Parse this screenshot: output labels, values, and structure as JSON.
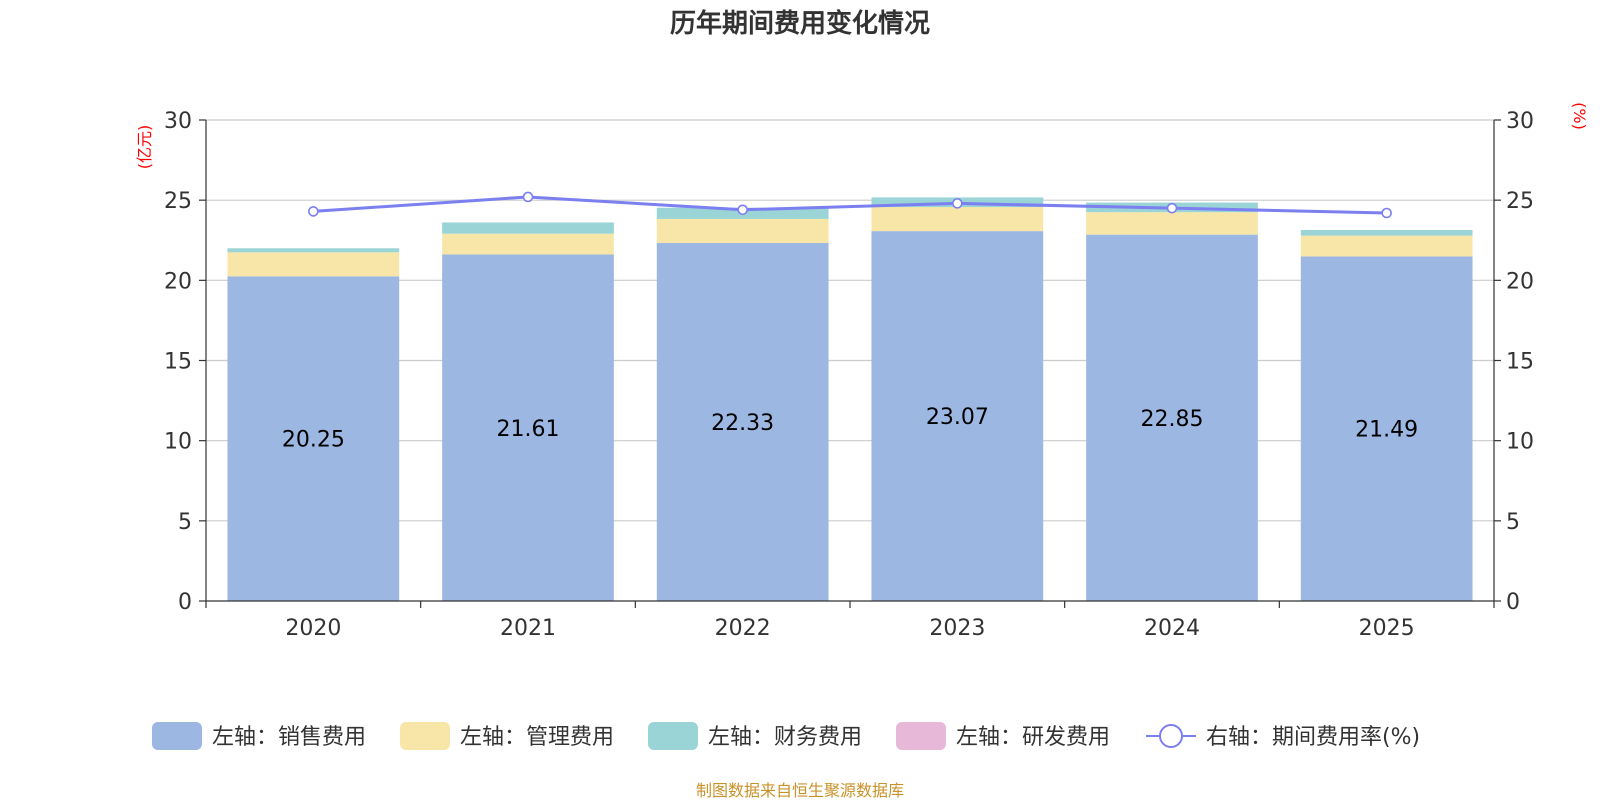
{
  "chart_data": {
    "type": "bar",
    "title": "历年期间费用变化情况",
    "categories": [
      "2020",
      "2021",
      "2022",
      "2023",
      "2024",
      "2025"
    ],
    "series": [
      {
        "name": "左轴：销售费用",
        "axis": "left",
        "kind": "bar",
        "color": "#9bb7e2",
        "values": [
          20.25,
          21.61,
          22.33,
          23.07,
          22.85,
          21.49
        ]
      },
      {
        "name": "左轴：管理费用",
        "axis": "left",
        "kind": "bar",
        "color": "#f8e6a8",
        "values": [
          1.5,
          1.3,
          1.5,
          1.5,
          1.4,
          1.3
        ]
      },
      {
        "name": "左轴：财务费用",
        "axis": "left",
        "kind": "bar",
        "color": "#9ad4d6",
        "values": [
          0.25,
          0.7,
          0.7,
          0.6,
          0.6,
          0.35
        ]
      },
      {
        "name": "左轴：研发费用",
        "axis": "left",
        "kind": "bar",
        "color": "#e8b8d8",
        "values": [
          0,
          0,
          0,
          0,
          0,
          0
        ]
      },
      {
        "name": "右轴：期间费用率(%)",
        "axis": "right",
        "kind": "line",
        "color": "#7b7ff0",
        "values": [
          24.3,
          25.2,
          24.4,
          24.8,
          24.5,
          24.2
        ]
      }
    ],
    "data_labels": [
      "20.25",
      "21.61",
      "22.33",
      "23.07",
      "22.85",
      "21.49"
    ],
    "left_axis": {
      "unit": "(亿元)",
      "min": 0,
      "max": 30,
      "ticks": [
        "0",
        "5",
        "10",
        "15",
        "20",
        "25",
        "30"
      ]
    },
    "right_axis": {
      "unit": "(%)",
      "min": 0,
      "max": 30,
      "ticks": [
        "0",
        "5",
        "10",
        "15",
        "20",
        "25",
        "30"
      ]
    },
    "grid": true,
    "legend_position": "bottom"
  },
  "source_note": "制图数据来自恒生聚源数据库"
}
